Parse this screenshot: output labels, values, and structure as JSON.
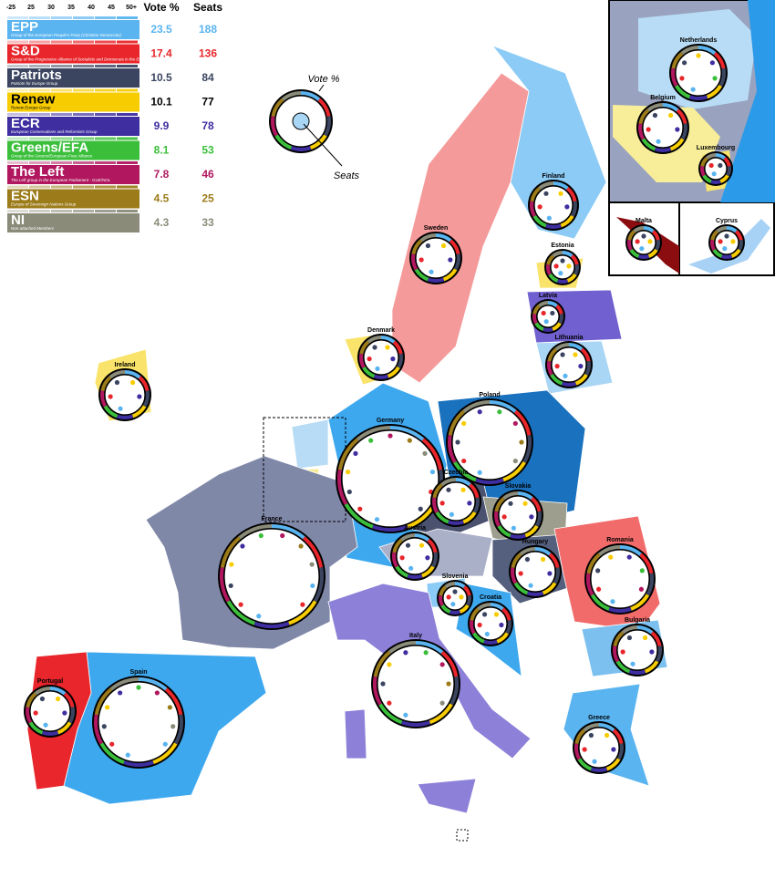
{
  "legend": {
    "scale": [
      "-25",
      "25",
      "30",
      "35",
      "40",
      "45",
      "50+"
    ],
    "vote_header": "Vote %",
    "seats_header": "Seats",
    "parties": [
      {
        "name": "EPP",
        "full_name": "Group of the European People's Party (Christian Democrats)",
        "vote": "23.5",
        "seats": "188",
        "color": "#5ab4f0"
      },
      {
        "name": "S&D",
        "full_name": "Group of the Progressive Alliance of Socialists and Democrats in the European Parliament",
        "vote": "17.4",
        "seats": "136",
        "color": "#e8262b"
      },
      {
        "name": "Patriots",
        "full_name": "Patriots for Europe Group",
        "vote": "10.5",
        "seats": "84",
        "color": "#3b4560"
      },
      {
        "name": "Renew",
        "full_name": "Renew Europe Group",
        "vote": "10.1",
        "seats": "77",
        "color": "#f7cc00"
      },
      {
        "name": "ECR",
        "full_name": "European Conservatives and Reformists Group",
        "vote": "9.9",
        "seats": "78",
        "color": "#3e2ea0"
      },
      {
        "name": "Greens/EFA",
        "full_name": "Group of the Greens/European Free Alliance",
        "vote": "8.1",
        "seats": "53",
        "color": "#3bbf3b"
      },
      {
        "name": "The Left",
        "full_name": "The Left group in the European Parliament - GUE/NGL",
        "vote": "7.8",
        "seats": "46",
        "color": "#b0175f"
      },
      {
        "name": "ESN",
        "full_name": "Europe of Sovereign Nations Group",
        "vote": "4.5",
        "seats": "25",
        "color": "#9c7b1a"
      },
      {
        "name": "NI",
        "full_name": "Non-attached Members",
        "vote": "4.3",
        "seats": "33",
        "color": "#8b8b7a"
      }
    ]
  },
  "key": {
    "vote_label": "Vote %",
    "seats_label": "Seats"
  },
  "countries": [
    {
      "name": "Finland",
      "color": "#8ccbf5"
    },
    {
      "name": "Sweden",
      "color": "#f59a9a"
    },
    {
      "name": "Estonia",
      "color": "#f9e36a"
    },
    {
      "name": "Latvia",
      "color": "#7060d0"
    },
    {
      "name": "Lithuania",
      "color": "#aad6f5"
    },
    {
      "name": "Denmark",
      "color": "#f9e36a"
    },
    {
      "name": "Ireland",
      "color": "#f9e36a"
    },
    {
      "name": "Netherlands",
      "color": "#b8dcf5"
    },
    {
      "name": "Belgium",
      "color": "#f8ee9a"
    },
    {
      "name": "Luxembourg",
      "color": "#f9e36a"
    },
    {
      "name": "Malta",
      "color": "#8b0d10"
    },
    {
      "name": "Cyprus",
      "color": "#a8d2f5"
    },
    {
      "name": "Poland",
      "color": "#1a72bf"
    },
    {
      "name": "Germany",
      "color": "#3ea8ef"
    },
    {
      "name": "Czechia",
      "color": "#4a5270"
    },
    {
      "name": "Slovakia",
      "color": "#9e9e8e"
    },
    {
      "name": "Austria",
      "color": "#aab0c8"
    },
    {
      "name": "Hungary",
      "color": "#55607e"
    },
    {
      "name": "Romania",
      "color": "#f26b6b"
    },
    {
      "name": "France",
      "color": "#8088a8"
    },
    {
      "name": "Slovenia",
      "color": "#8ccbf5"
    },
    {
      "name": "Croatia",
      "color": "#3ea8ef"
    },
    {
      "name": "Bulgaria",
      "color": "#7cc0f0"
    },
    {
      "name": "Italy",
      "color": "#8c80d8"
    },
    {
      "name": "Spain",
      "color": "#3ea8ef"
    },
    {
      "name": "Portugal",
      "color": "#e8262b"
    },
    {
      "name": "Greece",
      "color": "#5ab4f0"
    }
  ]
}
